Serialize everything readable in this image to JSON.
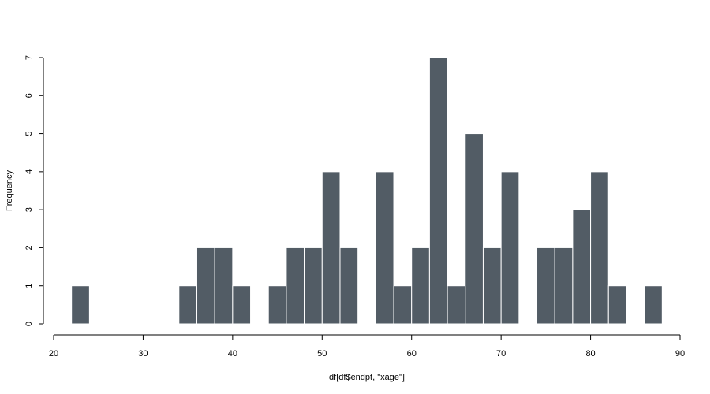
{
  "chart_data": {
    "type": "bar",
    "subtype": "histogram",
    "title": "",
    "xlabel": "df[df$endpt, \"xage\"]",
    "ylabel": "Frequency",
    "bin_width": 2,
    "bins": [
      {
        "start": 22,
        "end": 24,
        "count": 1
      },
      {
        "start": 24,
        "end": 26,
        "count": 0
      },
      {
        "start": 26,
        "end": 28,
        "count": 0
      },
      {
        "start": 28,
        "end": 30,
        "count": 0
      },
      {
        "start": 30,
        "end": 32,
        "count": 0
      },
      {
        "start": 32,
        "end": 34,
        "count": 0
      },
      {
        "start": 34,
        "end": 36,
        "count": 1
      },
      {
        "start": 36,
        "end": 38,
        "count": 2
      },
      {
        "start": 38,
        "end": 40,
        "count": 2
      },
      {
        "start": 40,
        "end": 42,
        "count": 1
      },
      {
        "start": 42,
        "end": 44,
        "count": 0
      },
      {
        "start": 44,
        "end": 46,
        "count": 1
      },
      {
        "start": 46,
        "end": 48,
        "count": 2
      },
      {
        "start": 48,
        "end": 50,
        "count": 2
      },
      {
        "start": 50,
        "end": 52,
        "count": 4
      },
      {
        "start": 52,
        "end": 54,
        "count": 2
      },
      {
        "start": 54,
        "end": 56,
        "count": 0
      },
      {
        "start": 56,
        "end": 58,
        "count": 4
      },
      {
        "start": 58,
        "end": 60,
        "count": 1
      },
      {
        "start": 60,
        "end": 62,
        "count": 2
      },
      {
        "start": 62,
        "end": 64,
        "count": 7
      },
      {
        "start": 64,
        "end": 66,
        "count": 1
      },
      {
        "start": 66,
        "end": 68,
        "count": 5
      },
      {
        "start": 68,
        "end": 70,
        "count": 2
      },
      {
        "start": 70,
        "end": 72,
        "count": 4
      },
      {
        "start": 72,
        "end": 74,
        "count": 0
      },
      {
        "start": 74,
        "end": 76,
        "count": 2
      },
      {
        "start": 76,
        "end": 78,
        "count": 2
      },
      {
        "start": 78,
        "end": 80,
        "count": 3
      },
      {
        "start": 80,
        "end": 82,
        "count": 4
      },
      {
        "start": 82,
        "end": 84,
        "count": 1
      },
      {
        "start": 84,
        "end": 86,
        "count": 0
      },
      {
        "start": 86,
        "end": 88,
        "count": 1
      }
    ],
    "xlim": [
      20,
      90
    ],
    "ylim": [
      0,
      7
    ],
    "x_ticks": [
      "20",
      "30",
      "40",
      "50",
      "60",
      "70",
      "80",
      "90"
    ],
    "y_ticks": [
      "0",
      "1",
      "2",
      "3",
      "4",
      "5",
      "6",
      "7"
    ],
    "grid": false,
    "legend": "none",
    "colors": {
      "bar_fill": "#525c65",
      "bar_border": "#ffffff",
      "axis": "#000000"
    }
  }
}
